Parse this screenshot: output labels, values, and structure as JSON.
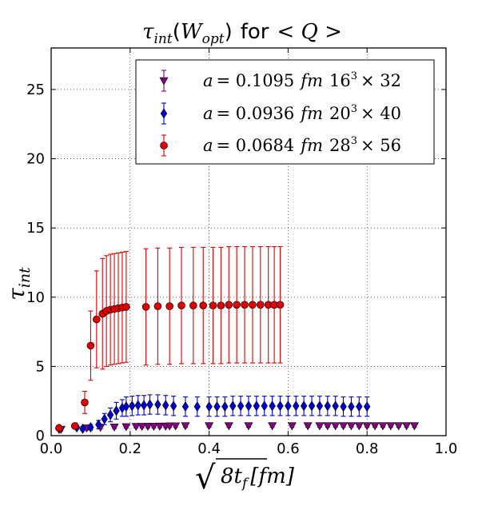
{
  "chart_data": {
    "type": "scatter",
    "title": {
      "tau": "τ",
      "tau_sub": "int",
      "paren_open": "(",
      "w": "W",
      "w_sub": "opt",
      "paren_close": ")",
      "middle": "for",
      "q": "< Q >"
    },
    "xlabel": {
      "radical": "√",
      "body": "8t",
      "sub": "f",
      "unit": "[fm]"
    },
    "ylabel": {
      "main": "τ",
      "sub": "int"
    },
    "xlim": [
      0.0,
      1.0
    ],
    "ylim": [
      0,
      28
    ],
    "xticks": [
      "0.0",
      "0.2",
      "0.4",
      "0.6",
      "0.8",
      "1.0"
    ],
    "yticks": [
      "0",
      "5",
      "10",
      "15",
      "20",
      "25"
    ],
    "grid": true,
    "legend_position": "top-right",
    "series": [
      {
        "name": "a = 0.1095 fm 16³ × 32",
        "label_a": "a",
        "label_val": "= 0.1095",
        "label_unit": "fm",
        "label_lat": "16",
        "label_exp": "3",
        "label_time": "× 32",
        "color": "#800080",
        "marker": "triangle-down",
        "points": [
          {
            "x": 0.025,
            "y": 0.45,
            "e": 0.1
          },
          {
            "x": 0.09,
            "y": 0.55,
            "e": 0.1
          },
          {
            "x": 0.125,
            "y": 0.6,
            "e": 0.1
          },
          {
            "x": 0.16,
            "y": 0.62,
            "e": 0.1
          },
          {
            "x": 0.19,
            "y": 0.64,
            "e": 0.1
          },
          {
            "x": 0.215,
            "y": 0.66,
            "e": 0.1
          },
          {
            "x": 0.23,
            "y": 0.66,
            "e": 0.1
          },
          {
            "x": 0.245,
            "y": 0.67,
            "e": 0.1
          },
          {
            "x": 0.26,
            "y": 0.67,
            "e": 0.1
          },
          {
            "x": 0.275,
            "y": 0.68,
            "e": 0.1
          },
          {
            "x": 0.29,
            "y": 0.68,
            "e": 0.1
          },
          {
            "x": 0.3,
            "y": 0.7,
            "e": 0.1
          },
          {
            "x": 0.315,
            "y": 0.7,
            "e": 0.1
          },
          {
            "x": 0.34,
            "y": 0.71,
            "e": 0.1
          },
          {
            "x": 0.4,
            "y": 0.71,
            "e": 0.1
          },
          {
            "x": 0.45,
            "y": 0.71,
            "e": 0.1
          },
          {
            "x": 0.5,
            "y": 0.71,
            "e": 0.1
          },
          {
            "x": 0.56,
            "y": 0.71,
            "e": 0.1
          },
          {
            "x": 0.61,
            "y": 0.71,
            "e": 0.1
          },
          {
            "x": 0.65,
            "y": 0.71,
            "e": 0.1
          },
          {
            "x": 0.68,
            "y": 0.71,
            "e": 0.1
          },
          {
            "x": 0.7,
            "y": 0.71,
            "e": 0.1
          },
          {
            "x": 0.72,
            "y": 0.71,
            "e": 0.1
          },
          {
            "x": 0.74,
            "y": 0.71,
            "e": 0.1
          },
          {
            "x": 0.76,
            "y": 0.71,
            "e": 0.1
          },
          {
            "x": 0.78,
            "y": 0.71,
            "e": 0.1
          },
          {
            "x": 0.8,
            "y": 0.71,
            "e": 0.1
          },
          {
            "x": 0.82,
            "y": 0.71,
            "e": 0.1
          },
          {
            "x": 0.84,
            "y": 0.71,
            "e": 0.1
          },
          {
            "x": 0.86,
            "y": 0.71,
            "e": 0.1
          },
          {
            "x": 0.88,
            "y": 0.71,
            "e": 0.1
          },
          {
            "x": 0.9,
            "y": 0.71,
            "e": 0.1
          },
          {
            "x": 0.92,
            "y": 0.71,
            "e": 0.1
          }
        ]
      },
      {
        "name": "a = 0.0936 fm 20³ × 40",
        "label_a": "a",
        "label_val": "= 0.0936",
        "label_unit": "fm",
        "label_lat": "20",
        "label_exp": "3",
        "label_time": "× 40",
        "color": "#0000cc",
        "marker": "diamond",
        "points": [
          {
            "x": 0.02,
            "y": 0.5,
            "e": 0.1
          },
          {
            "x": 0.065,
            "y": 0.6,
            "e": 0.1
          },
          {
            "x": 0.08,
            "y": 0.5,
            "e": 0.15
          },
          {
            "x": 0.1,
            "y": 0.6,
            "e": 0.2
          },
          {
            "x": 0.12,
            "y": 0.8,
            "e": 0.3
          },
          {
            "x": 0.135,
            "y": 1.2,
            "e": 0.4
          },
          {
            "x": 0.15,
            "y": 1.5,
            "e": 0.5
          },
          {
            "x": 0.165,
            "y": 1.8,
            "e": 0.6
          },
          {
            "x": 0.18,
            "y": 2.0,
            "e": 0.6
          },
          {
            "x": 0.19,
            "y": 2.1,
            "e": 0.7
          },
          {
            "x": 0.205,
            "y": 2.15,
            "e": 0.7
          },
          {
            "x": 0.22,
            "y": 2.2,
            "e": 0.7
          },
          {
            "x": 0.235,
            "y": 2.2,
            "e": 0.7
          },
          {
            "x": 0.25,
            "y": 2.25,
            "e": 0.7
          },
          {
            "x": 0.27,
            "y": 2.25,
            "e": 0.7
          },
          {
            "x": 0.29,
            "y": 2.2,
            "e": 0.7
          },
          {
            "x": 0.31,
            "y": 2.15,
            "e": 0.7
          },
          {
            "x": 0.34,
            "y": 2.1,
            "e": 0.7
          },
          {
            "x": 0.37,
            "y": 2.1,
            "e": 0.7
          },
          {
            "x": 0.4,
            "y": 2.1,
            "e": 0.7
          },
          {
            "x": 0.42,
            "y": 2.1,
            "e": 0.7
          },
          {
            "x": 0.44,
            "y": 2.1,
            "e": 0.7
          },
          {
            "x": 0.46,
            "y": 2.15,
            "e": 0.7
          },
          {
            "x": 0.48,
            "y": 2.15,
            "e": 0.7
          },
          {
            "x": 0.5,
            "y": 2.15,
            "e": 0.7
          },
          {
            "x": 0.52,
            "y": 2.15,
            "e": 0.7
          },
          {
            "x": 0.54,
            "y": 2.15,
            "e": 0.7
          },
          {
            "x": 0.56,
            "y": 2.15,
            "e": 0.7
          },
          {
            "x": 0.58,
            "y": 2.15,
            "e": 0.7
          },
          {
            "x": 0.6,
            "y": 2.15,
            "e": 0.7
          },
          {
            "x": 0.62,
            "y": 2.15,
            "e": 0.7
          },
          {
            "x": 0.64,
            "y": 2.15,
            "e": 0.7
          },
          {
            "x": 0.66,
            "y": 2.15,
            "e": 0.7
          },
          {
            "x": 0.68,
            "y": 2.15,
            "e": 0.7
          },
          {
            "x": 0.7,
            "y": 2.15,
            "e": 0.7
          },
          {
            "x": 0.72,
            "y": 2.15,
            "e": 0.7
          },
          {
            "x": 0.74,
            "y": 2.1,
            "e": 0.7
          },
          {
            "x": 0.76,
            "y": 2.1,
            "e": 0.7
          },
          {
            "x": 0.78,
            "y": 2.1,
            "e": 0.7
          },
          {
            "x": 0.8,
            "y": 2.1,
            "e": 0.7
          }
        ]
      },
      {
        "name": "a = 0.0684 fm 28³ × 56",
        "label_a": "a",
        "label_val": "= 0.0684",
        "label_unit": "fm",
        "label_lat": "28",
        "label_exp": "3",
        "label_time": "× 56",
        "color": "#dd0000",
        "marker": "circle",
        "points": [
          {
            "x": 0.02,
            "y": 0.55,
            "e": 0.1
          },
          {
            "x": 0.06,
            "y": 0.7,
            "e": 0.15
          },
          {
            "x": 0.085,
            "y": 2.4,
            "e": 0.8
          },
          {
            "x": 0.1,
            "y": 6.5,
            "e": 2.5
          },
          {
            "x": 0.115,
            "y": 8.4,
            "e": 3.5
          },
          {
            "x": 0.13,
            "y": 8.8,
            "e": 4.0
          },
          {
            "x": 0.14,
            "y": 9.0,
            "e": 4.0
          },
          {
            "x": 0.15,
            "y": 9.1,
            "e": 4.0
          },
          {
            "x": 0.16,
            "y": 9.15,
            "e": 4.0
          },
          {
            "x": 0.17,
            "y": 9.2,
            "e": 4.0
          },
          {
            "x": 0.18,
            "y": 9.25,
            "e": 4.0
          },
          {
            "x": 0.19,
            "y": 9.3,
            "e": 4.0
          },
          {
            "x": 0.24,
            "y": 9.3,
            "e": 4.2
          },
          {
            "x": 0.27,
            "y": 9.35,
            "e": 4.2
          },
          {
            "x": 0.3,
            "y": 9.35,
            "e": 4.2
          },
          {
            "x": 0.33,
            "y": 9.4,
            "e": 4.2
          },
          {
            "x": 0.36,
            "y": 9.4,
            "e": 4.2
          },
          {
            "x": 0.385,
            "y": 9.4,
            "e": 4.2
          },
          {
            "x": 0.41,
            "y": 9.4,
            "e": 4.2
          },
          {
            "x": 0.43,
            "y": 9.4,
            "e": 4.2
          },
          {
            "x": 0.45,
            "y": 9.45,
            "e": 4.2
          },
          {
            "x": 0.47,
            "y": 9.45,
            "e": 4.2
          },
          {
            "x": 0.49,
            "y": 9.45,
            "e": 4.2
          },
          {
            "x": 0.51,
            "y": 9.45,
            "e": 4.2
          },
          {
            "x": 0.53,
            "y": 9.45,
            "e": 4.2
          },
          {
            "x": 0.55,
            "y": 9.45,
            "e": 4.2
          },
          {
            "x": 0.565,
            "y": 9.45,
            "e": 4.2
          },
          {
            "x": 0.58,
            "y": 9.45,
            "e": 4.2
          }
        ]
      }
    ]
  }
}
